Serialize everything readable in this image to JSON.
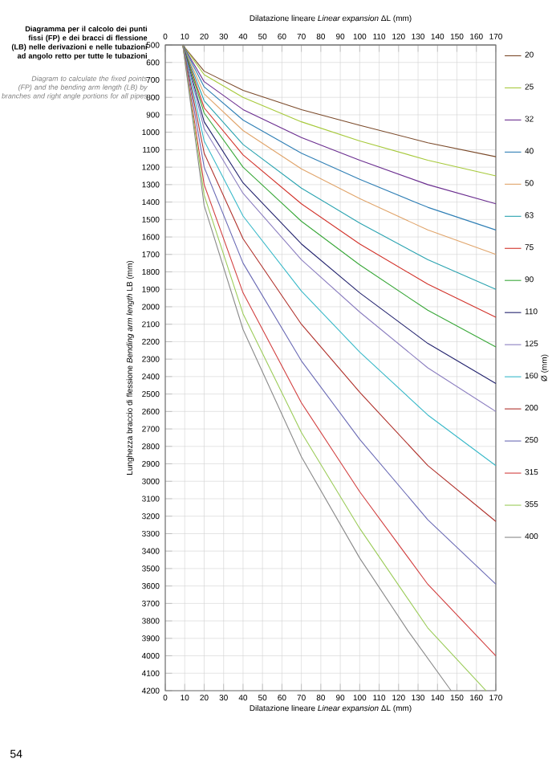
{
  "chart_data": {
    "type": "line",
    "title": "Diagramma per il calcolo dei punti fissi (FP) e dei bracci di flessione (LB) nelle derivazioni e nelle tubazioni ad angolo retto per tutte le tubazioni",
    "subtitle": "Diagram to calculate the fixed points (FP) and the bending arm length (LB) by branches and right angle portions for all pipes",
    "xlabel": "Dilatazione lineare *Linear expansion* ΔL (mm)",
    "x2label": "Dilatazione lineare *Linear expansion* ΔL (mm)",
    "ylabel": "Lunghezza braccio di flessione *Bending arm length* LB (mm)",
    "legend_title": "Ø (mm)",
    "annotations": [
      "54"
    ],
    "xlim": [
      0,
      170
    ],
    "xticks": [
      0,
      10,
      20,
      30,
      40,
      50,
      60,
      70,
      80,
      90,
      100,
      110,
      120,
      130,
      140,
      150,
      160,
      170
    ],
    "x2lim": [
      0,
      170
    ],
    "x2ticks": [
      0,
      10,
      20,
      30,
      40,
      50,
      60,
      70,
      80,
      90,
      100,
      110,
      120,
      130,
      140,
      150,
      160,
      170
    ],
    "ylim": [
      4200,
      500
    ],
    "yticks": [
      500,
      600,
      700,
      800,
      900,
      1000,
      1100,
      1200,
      1300,
      1400,
      1500,
      1600,
      1700,
      1800,
      1900,
      2000,
      2100,
      2200,
      2300,
      2400,
      2500,
      2600,
      2700,
      2800,
      2900,
      3000,
      3100,
      3200,
      3300,
      3400,
      3500,
      3600,
      3700,
      3800,
      3900,
      4000,
      4100,
      4200
    ],
    "grid": true,
    "legend": "right",
    "marker": "none",
    "line_style": "solid",
    "series": [
      {
        "name": "20",
        "color": "#7b4a2a",
        "x": [
          9,
          20,
          40,
          70,
          100,
          135,
          170
        ],
        "values": [
          500,
          650,
          760,
          870,
          960,
          1060,
          1140
        ]
      },
      {
        "name": "25",
        "color": "#a6c93a",
        "x": [
          9,
          20,
          40,
          70,
          100,
          135,
          170
        ],
        "values": [
          500,
          670,
          800,
          940,
          1050,
          1160,
          1250
        ]
      },
      {
        "name": "32",
        "color": "#6a2d8f",
        "x": [
          9,
          20,
          40,
          70,
          100,
          135,
          170
        ],
        "values": [
          500,
          710,
          870,
          1030,
          1160,
          1300,
          1410
        ]
      },
      {
        "name": "40",
        "color": "#2f7fb5",
        "x": [
          9,
          20,
          40,
          70,
          100,
          135,
          170
        ],
        "values": [
          500,
          740,
          930,
          1120,
          1270,
          1430,
          1560
        ]
      },
      {
        "name": "50",
        "color": "#e0a46a",
        "x": [
          9,
          20,
          40,
          70,
          100,
          135,
          170
        ],
        "values": [
          500,
          780,
          990,
          1210,
          1380,
          1560,
          1700
        ]
      },
      {
        "name": "63",
        "color": "#2aa3b0",
        "x": [
          9,
          20,
          40,
          70,
          100,
          135,
          170
        ],
        "values": [
          500,
          820,
          1070,
          1320,
          1520,
          1730,
          1900
        ]
      },
      {
        "name": "75",
        "color": "#d2332b",
        "x": [
          9,
          20,
          40,
          70,
          100,
          135,
          170
        ],
        "values": [
          500,
          860,
          1130,
          1410,
          1640,
          1870,
          2060
        ]
      },
      {
        "name": "90",
        "color": "#3aa83a",
        "x": [
          9,
          20,
          40,
          70,
          100,
          135,
          170
        ],
        "values": [
          500,
          890,
          1200,
          1510,
          1760,
          2020,
          2230
        ]
      },
      {
        "name": "110",
        "color": "#23236e",
        "x": [
          9,
          20,
          40,
          70,
          100,
          135,
          170
        ],
        "values": [
          500,
          940,
          1290,
          1640,
          1920,
          2210,
          2440
        ]
      },
      {
        "name": "125",
        "color": "#8c7fc0",
        "x": [
          9,
          20,
          40,
          70,
          100,
          135,
          170
        ],
        "values": [
          500,
          980,
          1350,
          1730,
          2030,
          2350,
          2600
        ]
      },
      {
        "name": "160",
        "color": "#39b9c9",
        "x": [
          9,
          20,
          40,
          70,
          100,
          135,
          170
        ],
        "values": [
          500,
          1050,
          1480,
          1910,
          2260,
          2620,
          2910
        ]
      },
      {
        "name": "200",
        "color": "#b0312b",
        "x": [
          9,
          20,
          40,
          70,
          100,
          135,
          170
        ],
        "values": [
          500,
          1120,
          1610,
          2100,
          2490,
          2910,
          3230
        ]
      },
      {
        "name": "250",
        "color": "#6b6bb5",
        "x": [
          9,
          20,
          40,
          70,
          100,
          135,
          170
        ],
        "values": [
          500,
          1200,
          1750,
          2310,
          2760,
          3220,
          3590
        ]
      },
      {
        "name": "315",
        "color": "#d24040",
        "x": [
          9,
          20,
          40,
          70,
          100,
          135,
          170
        ],
        "values": [
          500,
          1300,
          1920,
          2550,
          3060,
          3590,
          4000
        ]
      },
      {
        "name": "355",
        "color": "#9ccc5a",
        "x": [
          9,
          20,
          40,
          70,
          100,
          135,
          165
        ],
        "values": [
          500,
          1360,
          2040,
          2720,
          3270,
          3840,
          4200
        ]
      },
      {
        "name": "400",
        "color": "#8a8a8a",
        "x": [
          9,
          20,
          40,
          70,
          100,
          125,
          147
        ],
        "values": [
          500,
          1420,
          2130,
          2860,
          3440,
          3860,
          4200
        ]
      }
    ]
  }
}
